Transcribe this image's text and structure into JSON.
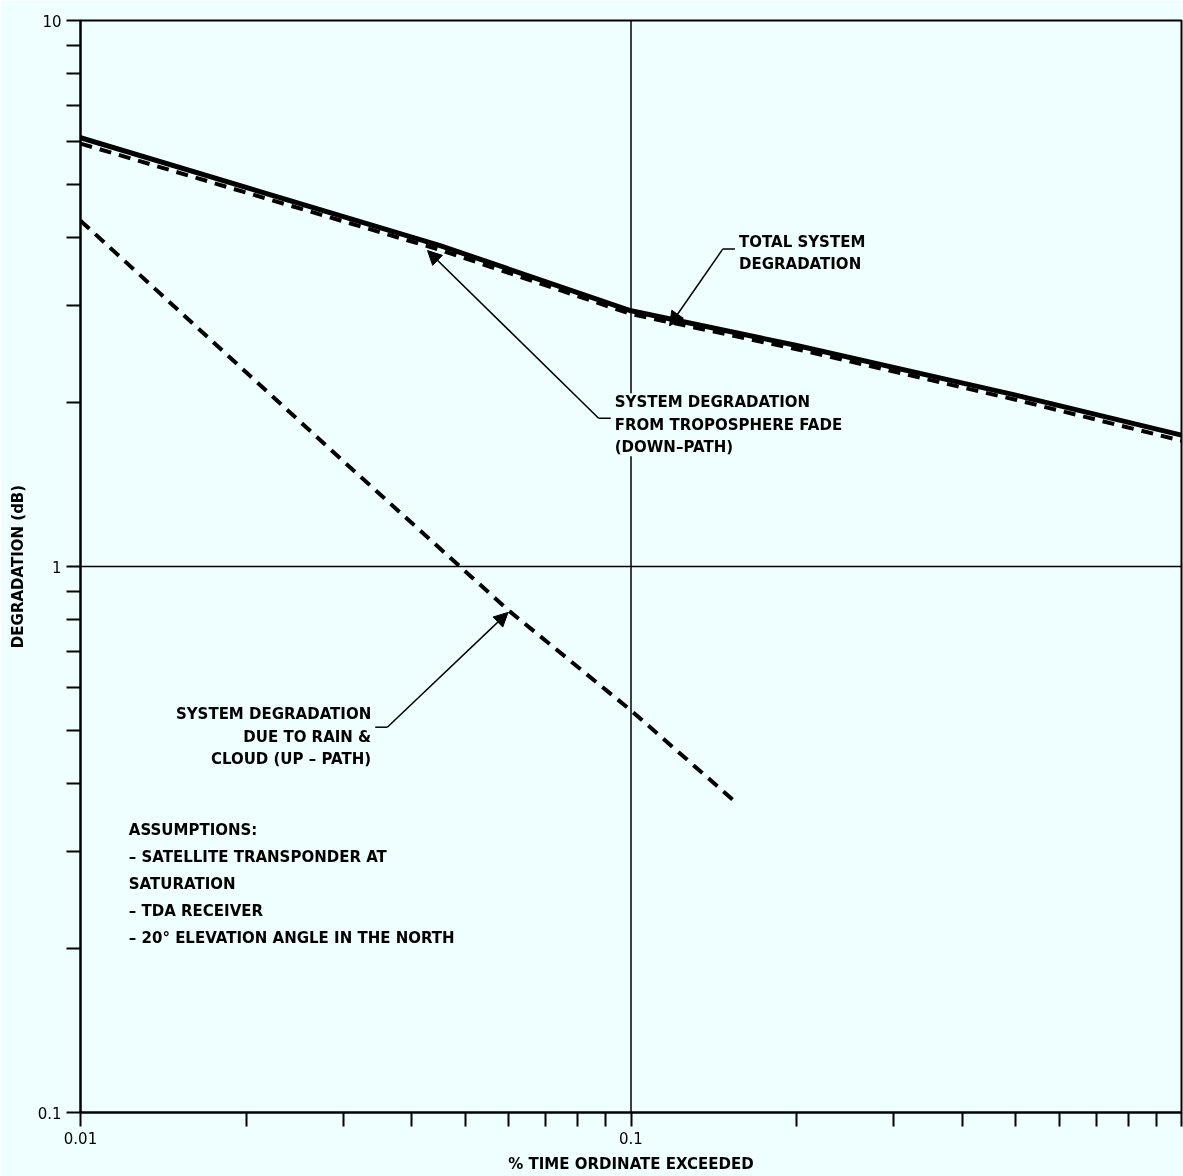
{
  "chart_data": {
    "type": "line",
    "xlabel": "% TIME ORDINATE EXCEEDED",
    "ylabel": "DEGRADATION (dB)",
    "log": "xy",
    "xlim": [
      0.01,
      1
    ],
    "ylim": [
      0.1,
      10
    ],
    "xticks": [
      0.01,
      {
        "value": 0.02,
        "label": null
      },
      {
        "value": 0.03,
        "label": null
      },
      {
        "value": 0.04,
        "label": null
      },
      {
        "value": 0.05,
        "label": null
      },
      {
        "value": 0.06,
        "label": null
      },
      {
        "value": 0.07,
        "label": null
      },
      {
        "value": 0.08,
        "label": null
      },
      {
        "value": 0.09,
        "label": null
      },
      0.1,
      {
        "value": 0.2,
        "label": null
      },
      {
        "value": 0.3,
        "label": null
      },
      {
        "value": 0.4,
        "label": null
      },
      {
        "value": 0.5,
        "label": null
      },
      {
        "value": 0.6,
        "label": null
      },
      {
        "value": 0.7,
        "label": null
      },
      {
        "value": 0.8,
        "label": null
      },
      {
        "value": 0.9,
        "label": null
      },
      {
        "value": 1,
        "label": null
      }
    ],
    "yticks": [
      0.1,
      {
        "value": 0.2,
        "label": null
      },
      {
        "value": 0.3,
        "label": null
      },
      {
        "value": 0.4,
        "label": null
      },
      {
        "value": 0.5,
        "label": null
      },
      {
        "value": 0.6,
        "label": null
      },
      {
        "value": 0.7,
        "label": null
      },
      {
        "value": 0.8,
        "label": null
      },
      {
        "value": 0.9,
        "label": null
      },
      1,
      {
        "value": 2,
        "label": null
      },
      {
        "value": 3,
        "label": null
      },
      {
        "value": 4,
        "label": null
      },
      {
        "value": 5,
        "label": null
      },
      {
        "value": 6,
        "label": null
      },
      {
        "value": 7,
        "label": null
      },
      {
        "value": 8,
        "label": null
      },
      {
        "value": 9,
        "label": null
      },
      10
    ],
    "marker": "none",
    "series": [
      {
        "color": "#000000",
        "line_style": "solid",
        "x": [
          0.01,
          0.045,
          0.1,
          0.2,
          0.5,
          1
        ],
        "values": [
          6.1,
          3.87,
          2.94,
          2.54,
          2.06,
          1.74
        ]
      },
      {
        "color": "#000000",
        "line_style": "dashed",
        "x": [
          0.01,
          0.045,
          0.1,
          0.2,
          0.5,
          1
        ],
        "values": [
          5.95,
          3.8,
          2.9,
          2.5,
          2.02,
          1.7
        ]
      },
      {
        "color": "#000000",
        "line_style": "dashed",
        "x": [
          0.01,
          0.03,
          0.06,
          0.1,
          0.154
        ],
        "values": [
          4.3,
          1.56,
          0.83,
          0.545,
          0.372
        ]
      }
    ],
    "ref_lines": [
      {
        "axis": "x",
        "value": 0.1
      },
      {
        "axis": "y",
        "value": 1
      }
    ],
    "annotations": [
      {
        "text": "TOTAL SYSTEM\nDEGRADATION",
        "x": 0.1175,
        "y": 2.76
      },
      {
        "text": "SYSTEM DEGRADATION\nFROM TROPOSPHERE FADE\n(DOWN–PATH)",
        "x": 0.0427,
        "y": 3.79
      },
      {
        "text": "SYSTEM DEGRADATION\nDUE TO RAIN &\nCLOUD (UP – PATH)",
        "x": 0.0598,
        "y": 0.824
      },
      "ASSUMPTIONS:\n – SATELLITE TRANSPONDER AT\n    SATURATION\n – TDA RECEIVER\n – 20° ELEVATION ANGLE IN THE NORTH"
    ]
  }
}
